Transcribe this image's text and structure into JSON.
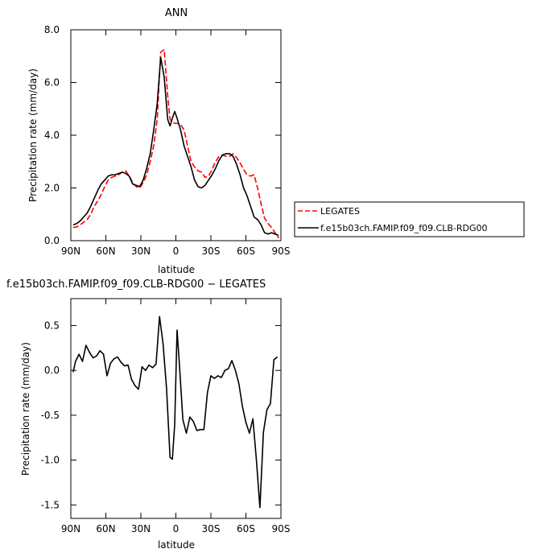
{
  "chart_data": [
    {
      "type": "line",
      "title": "ANN",
      "xlabel": "latitude",
      "ylabel": "Precipitation rate (mm/day)",
      "xlim": [
        90,
        -90
      ],
      "ylim": [
        0,
        8
      ],
      "xticks": [
        90,
        60,
        30,
        0,
        -30,
        -60,
        -90
      ],
      "xtick_labels": [
        "90N",
        "60N",
        "30N",
        "0",
        "30S",
        "60S",
        "90S"
      ],
      "yticks": [
        0,
        2,
        4,
        6,
        8
      ],
      "ytick_labels": [
        "0.0",
        "2.0",
        "4.0",
        "6.0",
        "8.0"
      ],
      "grid": false,
      "legend_position": "right",
      "series": [
        {
          "name": "LEGATES",
          "color": "#ff0000",
          "dash": "dashed",
          "x": [
            88,
            85,
            82,
            79,
            76,
            73,
            70,
            67,
            64,
            61,
            58,
            55,
            52,
            49,
            46,
            43,
            40,
            37,
            34,
            31,
            28,
            25,
            22,
            19,
            16,
            13,
            10,
            7,
            5,
            3,
            1,
            -1,
            -4,
            -7,
            -10,
            -13,
            -16,
            -19,
            -22,
            -25,
            -28,
            -31,
            -34,
            -37,
            -40,
            -43,
            -46,
            -49,
            -52,
            -55,
            -58,
            -61,
            -64,
            -67,
            -70,
            -73,
            -76,
            -79,
            -82,
            -85,
            -88
          ],
          "y": [
            0.5,
            0.52,
            0.6,
            0.7,
            0.8,
            1.0,
            1.3,
            1.5,
            1.75,
            2.05,
            2.3,
            2.4,
            2.45,
            2.5,
            2.6,
            2.65,
            2.45,
            2.2,
            2.05,
            2.0,
            2.2,
            2.5,
            3.0,
            3.6,
            4.6,
            7.15,
            7.25,
            5.5,
            4.6,
            4.5,
            4.45,
            4.45,
            4.4,
            4.2,
            3.6,
            3.0,
            2.8,
            2.65,
            2.6,
            2.4,
            2.45,
            2.7,
            3.0,
            3.2,
            3.25,
            3.2,
            3.2,
            3.3,
            3.15,
            2.95,
            2.7,
            2.5,
            2.45,
            2.5,
            2.0,
            1.4,
            0.85,
            0.65,
            0.5,
            0.3,
            0.1
          ]
        },
        {
          "name": "f.e15b03ch.FAMIP.f09_f09.CLB-RDG00",
          "color": "#000000",
          "dash": "solid",
          "x": [
            88,
            85,
            82,
            79,
            76,
            73,
            70,
            67,
            64,
            61,
            58,
            55,
            52,
            49,
            46,
            43,
            40,
            37,
            34,
            31,
            28,
            25,
            22,
            19,
            16,
            13,
            10,
            7,
            5,
            3,
            1,
            -1,
            -4,
            -7,
            -10,
            -13,
            -16,
            -19,
            -22,
            -25,
            -28,
            -31,
            -34,
            -37,
            -40,
            -43,
            -46,
            -49,
            -52,
            -55,
            -58,
            -61,
            -64,
            -67,
            -70,
            -73,
            -76,
            -79,
            -82,
            -85,
            -88
          ],
          "y": [
            0.6,
            0.65,
            0.75,
            0.9,
            1.05,
            1.3,
            1.6,
            1.9,
            2.15,
            2.3,
            2.45,
            2.5,
            2.5,
            2.55,
            2.6,
            2.55,
            2.45,
            2.15,
            2.1,
            2.05,
            2.3,
            2.75,
            3.3,
            4.2,
            5.2,
            6.95,
            6.2,
            4.6,
            4.35,
            4.65,
            4.9,
            4.65,
            4.2,
            3.6,
            3.2,
            2.8,
            2.3,
            2.05,
            2.0,
            2.1,
            2.3,
            2.5,
            2.75,
            3.05,
            3.25,
            3.3,
            3.3,
            3.2,
            2.9,
            2.5,
            2.0,
            1.7,
            1.3,
            0.9,
            0.8,
            0.6,
            0.3,
            0.25,
            0.3,
            0.25,
            0.2
          ]
        }
      ]
    },
    {
      "type": "line",
      "title": "f.e15b03ch.FAMIP.f09_f09.CLB-RDG00 − LEGATES",
      "xlabel": "latitude",
      "ylabel": "Precipitation rate (mm/day)",
      "xlim": [
        90,
        -90
      ],
      "ylim": [
        -1.65,
        0.8
      ],
      "xticks": [
        90,
        60,
        30,
        0,
        -30,
        -60,
        -90
      ],
      "xtick_labels": [
        "90N",
        "60N",
        "30N",
        "0",
        "30S",
        "60S",
        "90S"
      ],
      "yticks": [
        -1.5,
        -1.0,
        -0.5,
        0.0,
        0.5
      ],
      "ytick_labels": [
        "-1.5",
        "-1.0",
        "-0.5",
        "0.0",
        "0.5"
      ],
      "grid": false,
      "series": [
        {
          "name": "",
          "color": "#000000",
          "dash": "solid",
          "x": [
            88,
            86,
            83,
            80,
            77,
            74,
            71,
            68,
            65,
            62,
            59,
            56,
            53,
            50,
            47,
            44,
            41,
            38,
            35,
            32,
            29,
            26,
            23,
            20,
            17,
            14,
            11,
            8,
            5,
            3,
            1,
            -1,
            -3,
            -6,
            -9,
            -12,
            -15,
            -18,
            -21,
            -24,
            -27,
            -30,
            -33,
            -36,
            -39,
            -42,
            -45,
            -48,
            -51,
            -54,
            -57,
            -60,
            -63,
            -66,
            -69,
            -72,
            -75,
            -78,
            -81,
            -84,
            -87
          ],
          "y": [
            -0.02,
            0.1,
            0.18,
            0.1,
            0.28,
            0.2,
            0.14,
            0.16,
            0.22,
            0.18,
            -0.06,
            0.08,
            0.13,
            0.15,
            0.09,
            0.05,
            0.06,
            -0.1,
            -0.17,
            -0.21,
            0.04,
            0.0,
            0.06,
            0.03,
            0.07,
            0.6,
            0.3,
            -0.2,
            -0.97,
            -0.99,
            -0.6,
            0.45,
            0.07,
            -0.55,
            -0.7,
            -0.52,
            -0.57,
            -0.67,
            -0.66,
            -0.66,
            -0.25,
            -0.06,
            -0.09,
            -0.06,
            -0.08,
            0.0,
            0.02,
            0.11,
            0.0,
            -0.15,
            -0.4,
            -0.58,
            -0.7,
            -0.54,
            -1.0,
            -1.53,
            -0.69,
            -0.44,
            -0.37,
            0.12,
            0.15
          ]
        }
      ]
    }
  ]
}
